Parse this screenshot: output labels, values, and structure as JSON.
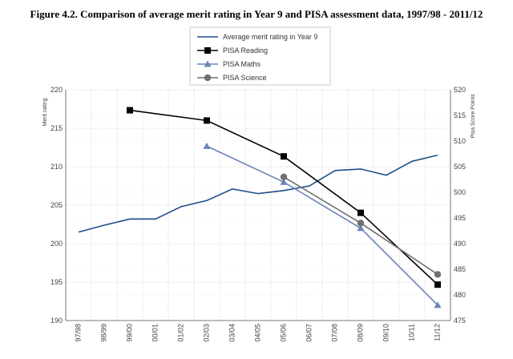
{
  "chart_data": {
    "type": "line",
    "title": "Figure 4.2. Comparison of average merit rating in Year 9 and PISA assessment data, 1997/98 - 2011/12",
    "categories": [
      "97/98",
      "98/99",
      "99/00",
      "00/01",
      "01/02",
      "02/03",
      "03/04",
      "04/05",
      "05/06",
      "06/07",
      "07/08",
      "08/09",
      "09/10",
      "10/11",
      "11/12"
    ],
    "ylabel_left": "Merit rating",
    "ylabel_right": "Pisa Score Points",
    "ylim_left": [
      190,
      220
    ],
    "ylim_right": [
      475,
      520
    ],
    "yticks_left": [
      190,
      195,
      200,
      205,
      210,
      215,
      220
    ],
    "yticks_right": [
      475,
      480,
      485,
      490,
      495,
      500,
      505,
      510,
      515,
      520
    ],
    "grid": true,
    "legend_position": "top-center",
    "series": [
      {
        "name": "Average merit rating in Year 9",
        "axis": "left",
        "color": "#1f4e8c",
        "marker": "none",
        "values": [
          201.5,
          202.4,
          203.2,
          203.2,
          204.8,
          205.6,
          207.1,
          206.5,
          206.9,
          207.5,
          209.5,
          209.7,
          208.9,
          210.7,
          211.5
        ]
      },
      {
        "name": "PISA Reading",
        "axis": "right",
        "color": "#000000",
        "marker": "square",
        "points": [
          {
            "x": "99/00",
            "y": 516
          },
          {
            "x": "02/03",
            "y": 514
          },
          {
            "x": "05/06",
            "y": 507
          },
          {
            "x": "08/09",
            "y": 496
          },
          {
            "x": "11/12",
            "y": 482
          }
        ]
      },
      {
        "name": "PISA Maths",
        "axis": "right",
        "color": "#6a84b5",
        "marker": "triangle",
        "points": [
          {
            "x": "02/03",
            "y": 509
          },
          {
            "x": "05/06",
            "y": 502
          },
          {
            "x": "08/09",
            "y": 493
          },
          {
            "x": "11/12",
            "y": 478
          }
        ]
      },
      {
        "name": "PISA Science",
        "axis": "right",
        "color": "#707070",
        "marker": "circle",
        "points": [
          {
            "x": "05/06",
            "y": 503
          },
          {
            "x": "08/09",
            "y": 494
          },
          {
            "x": "11/12",
            "y": 484
          }
        ]
      }
    ]
  }
}
